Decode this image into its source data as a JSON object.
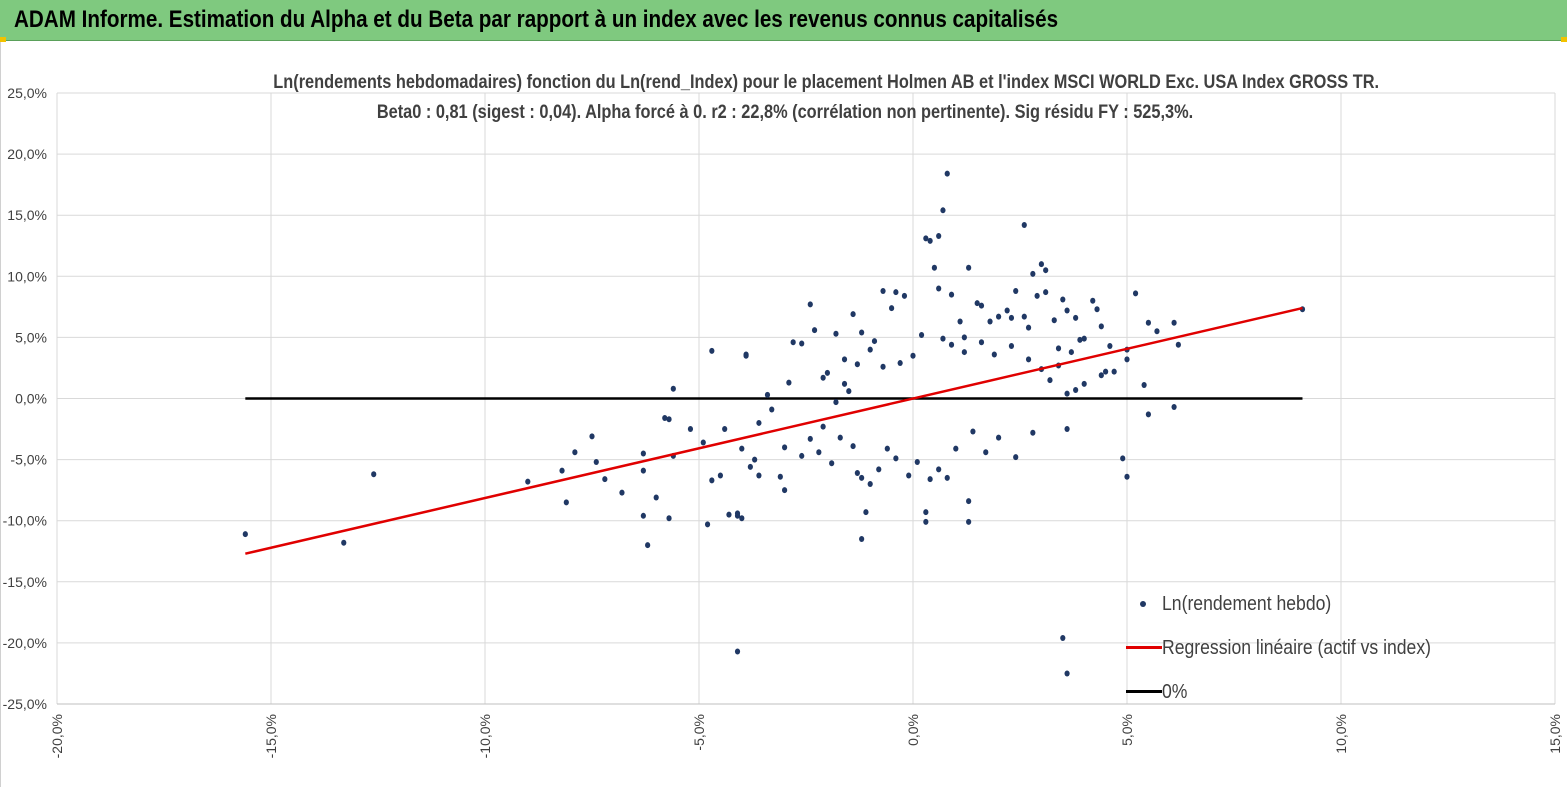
{
  "banner": {
    "title": "ADAM Informe. Estimation du Alpha et du Beta par rapport à un index avec les revenus connus capitalisés",
    "background": "#7fc97f"
  },
  "chart_data": {
    "type": "scatter",
    "title": "Ln(rendements hebdomadaires) fonction du Ln(rend_Index) pour le placement Holmen AB et l'index MSCI WORLD Exc. USA Index GROSS TR.",
    "subtitle": "Beta0 : 0,81 (sigest : 0,04). Alpha forcé à 0. r2 : 22,8% (corrélation non pertinente). Sig résidu FY : 525,3%.",
    "xlabel": "",
    "ylabel": "",
    "xlim": [
      -0.2,
      0.15
    ],
    "ylim": [
      -0.25,
      0.25
    ],
    "x_ticks": [
      "-20,0%",
      "-15,0%",
      "-10,0%",
      "-5,0%",
      "0,0%",
      "5,0%",
      "10,0%",
      "15,0%"
    ],
    "y_ticks": [
      "25,0%",
      "20,0%",
      "15,0%",
      "10,0%",
      "5,0%",
      "0,0%",
      "-5,0%",
      "-10,0%",
      "-15,0%",
      "-20,0%",
      "-25,0%"
    ],
    "grid": true,
    "legend_position": "bottom-right",
    "colors": {
      "points": "#203864",
      "regression": "#e00000",
      "zero": "#000000"
    },
    "series": [
      {
        "name": "Ln(rendement hebdo)",
        "kind": "scatter",
        "points": [
          [
            -0.156,
            -0.111
          ],
          [
            -0.133,
            -0.118
          ],
          [
            -0.126,
            -0.062
          ],
          [
            -0.09,
            -0.068
          ],
          [
            -0.081,
            -0.085
          ],
          [
            -0.082,
            -0.059
          ],
          [
            -0.079,
            -0.044
          ],
          [
            -0.075,
            -0.031
          ],
          [
            -0.074,
            -0.052
          ],
          [
            -0.072,
            -0.066
          ],
          [
            -0.068,
            -0.077
          ],
          [
            -0.063,
            -0.096
          ],
          [
            -0.062,
            -0.12
          ],
          [
            -0.063,
            -0.045
          ],
          [
            -0.063,
            -0.059
          ],
          [
            -0.06,
            -0.081
          ],
          [
            -0.057,
            -0.098
          ],
          [
            -0.057,
            -0.017
          ],
          [
            -0.058,
            -0.016
          ],
          [
            -0.056,
            0.008
          ],
          [
            -0.056,
            -0.047
          ],
          [
            -0.052,
            -0.025
          ],
          [
            -0.049,
            -0.036
          ],
          [
            -0.048,
            -0.103
          ],
          [
            -0.047,
            -0.067
          ],
          [
            -0.047,
            0.039
          ],
          [
            -0.045,
            -0.063
          ],
          [
            -0.044,
            -0.025
          ],
          [
            -0.043,
            -0.095
          ],
          [
            -0.041,
            -0.094
          ],
          [
            -0.041,
            -0.096
          ],
          [
            -0.04,
            -0.098
          ],
          [
            -0.041,
            -0.207
          ],
          [
            -0.039,
            0.036
          ],
          [
            -0.039,
            0.035
          ],
          [
            -0.04,
            -0.041
          ],
          [
            -0.038,
            -0.056
          ],
          [
            -0.036,
            -0.063
          ],
          [
            -0.033,
            -0.009
          ],
          [
            -0.031,
            -0.064
          ],
          [
            -0.03,
            -0.075
          ],
          [
            -0.034,
            0.003
          ],
          [
            -0.036,
            -0.02
          ],
          [
            -0.037,
            -0.05
          ],
          [
            -0.029,
            0.013
          ],
          [
            -0.028,
            0.046
          ],
          [
            -0.026,
            0.045
          ],
          [
            -0.024,
            0.077
          ],
          [
            -0.023,
            0.056
          ],
          [
            -0.021,
            -0.023
          ],
          [
            -0.021,
            0.017
          ],
          [
            -0.018,
            0.053
          ],
          [
            -0.016,
            0.032
          ],
          [
            -0.014,
            0.069
          ],
          [
            -0.012,
            0.054
          ],
          [
            -0.013,
            -0.061
          ],
          [
            -0.012,
            -0.115
          ],
          [
            -0.011,
            -0.093
          ],
          [
            -0.009,
            0.047
          ],
          [
            -0.007,
            0.088
          ],
          [
            -0.005,
            0.074
          ],
          [
            -0.004,
            0.087
          ],
          [
            -0.003,
            0.029
          ],
          [
            -0.002,
            0.084
          ],
          [
            0.0,
            0.035
          ],
          [
            0.002,
            0.052
          ],
          [
            0.003,
            -0.093
          ],
          [
            0.003,
            -0.101
          ],
          [
            0.003,
            0.131
          ],
          [
            0.004,
            0.129
          ],
          [
            0.005,
            0.107
          ],
          [
            0.006,
            0.09
          ],
          [
            0.006,
            0.133
          ],
          [
            0.007,
            0.154
          ],
          [
            0.007,
            0.049
          ],
          [
            0.008,
            0.184
          ],
          [
            0.009,
            0.085
          ],
          [
            0.011,
            0.063
          ],
          [
            0.012,
            0.05
          ],
          [
            0.013,
            0.107
          ],
          [
            0.013,
            -0.084
          ],
          [
            0.013,
            -0.101
          ],
          [
            0.015,
            0.078
          ],
          [
            0.016,
            0.076
          ],
          [
            0.018,
            0.063
          ],
          [
            0.02,
            0.067
          ],
          [
            0.022,
            0.072
          ],
          [
            0.023,
            0.066
          ],
          [
            0.024,
            0.088
          ],
          [
            0.026,
            0.142
          ],
          [
            0.026,
            0.067
          ],
          [
            0.027,
            0.058
          ],
          [
            0.028,
            0.102
          ],
          [
            0.029,
            0.084
          ],
          [
            0.03,
            0.11
          ],
          [
            0.031,
            0.105
          ],
          [
            0.031,
            0.087
          ],
          [
            0.033,
            0.064
          ],
          [
            0.034,
            0.041
          ],
          [
            0.035,
            0.081
          ],
          [
            0.036,
            0.072
          ],
          [
            0.037,
            0.038
          ],
          [
            0.038,
            0.066
          ],
          [
            0.04,
            0.049
          ],
          [
            0.042,
            0.08
          ],
          [
            0.043,
            0.073
          ],
          [
            0.044,
            0.059
          ],
          [
            0.046,
            0.043
          ],
          [
            0.047,
            0.022
          ],
          [
            0.049,
            -0.049
          ],
          [
            0.05,
            -0.064
          ],
          [
            0.05,
            0.04
          ],
          [
            0.05,
            0.032
          ],
          [
            0.052,
            0.086
          ],
          [
            0.054,
            0.011
          ],
          [
            0.055,
            -0.013
          ],
          [
            0.055,
            0.062
          ],
          [
            0.057,
            0.055
          ],
          [
            0.061,
            0.062
          ],
          [
            0.061,
            -0.007
          ],
          [
            0.062,
            0.044
          ],
          [
            0.091,
            0.073
          ],
          [
            0.035,
            -0.196
          ],
          [
            0.036,
            -0.225
          ],
          [
            0.036,
            -0.025
          ],
          [
            0.039,
            0.048
          ],
          [
            0.044,
            0.019
          ],
          [
            0.045,
            0.022
          ],
          [
            0.04,
            0.012
          ],
          [
            0.038,
            0.007
          ],
          [
            -0.022,
            -0.044
          ],
          [
            -0.019,
            -0.053
          ],
          [
            -0.017,
            -0.032
          ],
          [
            -0.014,
            -0.039
          ],
          [
            -0.012,
            -0.065
          ],
          [
            -0.01,
            -0.07
          ],
          [
            -0.008,
            -0.058
          ],
          [
            -0.006,
            -0.041
          ],
          [
            -0.004,
            -0.049
          ],
          [
            -0.001,
            -0.063
          ],
          [
            0.001,
            -0.052
          ],
          [
            0.004,
            -0.066
          ],
          [
            0.006,
            -0.058
          ],
          [
            0.008,
            -0.065
          ],
          [
            0.01,
            -0.041
          ],
          [
            0.014,
            -0.027
          ],
          [
            0.017,
            -0.044
          ],
          [
            0.02,
            -0.032
          ],
          [
            0.024,
            -0.048
          ],
          [
            0.028,
            -0.028
          ],
          [
            -0.02,
            0.021
          ],
          [
            -0.016,
            0.012
          ],
          [
            -0.013,
            0.028
          ],
          [
            -0.01,
            0.04
          ],
          [
            -0.007,
            0.026
          ],
          [
            0.009,
            0.044
          ],
          [
            0.012,
            0.038
          ],
          [
            0.016,
            0.046
          ],
          [
            0.019,
            0.036
          ],
          [
            0.023,
            0.043
          ],
          [
            0.027,
            0.032
          ],
          [
            0.03,
            0.024
          ],
          [
            0.032,
            0.015
          ],
          [
            0.034,
            0.027
          ],
          [
            0.036,
            0.004
          ],
          [
            -0.03,
            -0.04
          ],
          [
            -0.026,
            -0.047
          ],
          [
            -0.024,
            -0.033
          ],
          [
            -0.018,
            -0.003
          ],
          [
            -0.015,
            0.006
          ]
        ]
      },
      {
        "name": "Regression linéaire (actif vs index)",
        "kind": "line",
        "points": [
          [
            -0.156,
            -0.127
          ],
          [
            0.091,
            0.074
          ]
        ]
      },
      {
        "name": "0%",
        "kind": "line",
        "points": [
          [
            -0.156,
            0.0
          ],
          [
            0.091,
            0.0
          ]
        ]
      }
    ]
  }
}
